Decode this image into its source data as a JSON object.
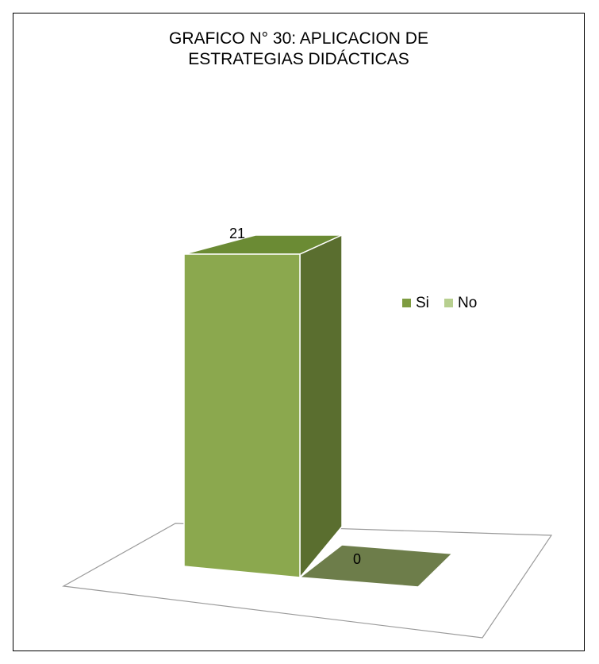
{
  "chart_data": {
    "type": "bar",
    "title": "GRAFICO N° 30: APLICACION DE\nESTRATEGIAS DIDÁCTICAS",
    "categories": [
      "Si",
      "No"
    ],
    "values": [
      21,
      0
    ],
    "data_labels": [
      "21",
      "0"
    ],
    "legend": {
      "placement": "right",
      "entries": [
        {
          "name": "Si",
          "color": "#7e9c41"
        },
        {
          "name": "No",
          "color": "#b7cf8f"
        }
      ]
    },
    "ylim": [
      0,
      21
    ],
    "grid": false,
    "style": "3d-column",
    "colors": {
      "si_front": "#8ba84e",
      "si_top": "#6b8b34",
      "si_side": "#5a6e2f",
      "no_base": "#6d7d4a"
    }
  }
}
